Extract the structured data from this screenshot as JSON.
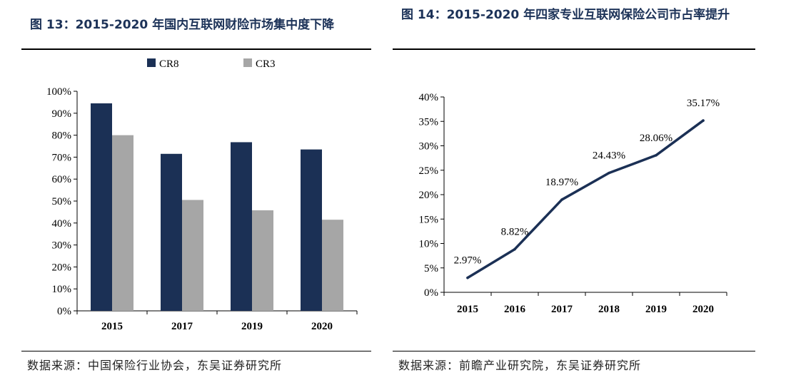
{
  "left_figure": {
    "title": "图 13：2015-2020 年国内互联网财险市场集中度下降",
    "source": "数据来源：中国保险行业协会，东吴证券研究所"
  },
  "right_figure": {
    "title": "图 14：2015-2020 年四家专业互联网保险公司市占率提升",
    "source": "数据来源：前瞻产业研究院，东吴证券研究所"
  },
  "colors": {
    "cr8": "#1b3055",
    "cr3": "#a6a6a6",
    "line": "#1b3055"
  },
  "chart_data": [
    {
      "type": "bar",
      "title": "2015-2020 年国内互联网财险市场集中度下降",
      "categories": [
        "2015",
        "2017",
        "2019",
        "2020"
      ],
      "series": [
        {
          "name": "CR8",
          "values": [
            94.5,
            71.5,
            76.8,
            73.5
          ]
        },
        {
          "name": "CR3",
          "values": [
            80.0,
            50.5,
            45.8,
            41.5
          ]
        }
      ],
      "yticks": [
        "0%",
        "10%",
        "20%",
        "30%",
        "40%",
        "50%",
        "60%",
        "70%",
        "80%",
        "90%",
        "100%"
      ],
      "ylim": [
        0,
        100
      ],
      "legend": "top-center",
      "grid": false
    },
    {
      "type": "line",
      "title": "2015-2020 年四家专业互联网保险公司市占率提升",
      "categories": [
        "2015",
        "2016",
        "2017",
        "2018",
        "2019",
        "2020"
      ],
      "values": [
        2.97,
        8.82,
        18.97,
        24.43,
        28.06,
        35.17
      ],
      "labels": [
        "2.97%",
        "8.82%",
        "18.97%",
        "24.43%",
        "28.06%",
        "35.17%"
      ],
      "yticks": [
        "0%",
        "5%",
        "10%",
        "15%",
        "20%",
        "25%",
        "30%",
        "35%",
        "40%"
      ],
      "ylim": [
        0,
        40
      ],
      "grid": false
    }
  ]
}
